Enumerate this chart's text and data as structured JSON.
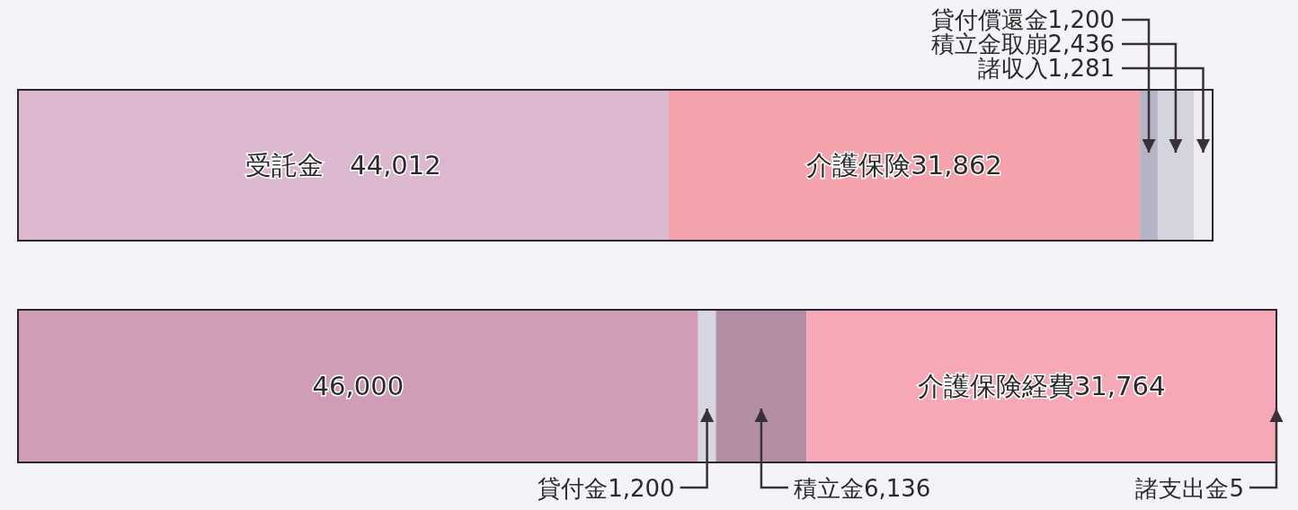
{
  "chart_data": [
    {
      "type": "bar",
      "orientation": "horizontal",
      "stacked": true,
      "categories": [
        null
      ],
      "series": [
        {
          "color": "#dcb8d0",
          "values": [
            44012
          ],
          "value_labels": [
            "受託金　44,012"
          ]
        },
        {
          "color": "#f4a2ac",
          "values": [
            31862
          ],
          "value_labels": [
            "介護保険31,862"
          ]
        },
        {
          "color": "#b4b4c4",
          "values": [
            1200
          ],
          "value_labels": [
            "貸付償還金1,200"
          ]
        },
        {
          "color": "#d4d4de",
          "values": [
            2436
          ],
          "value_labels": [
            "積立金取崩2,436"
          ]
        },
        {
          "color": "#eeecf2",
          "values": [
            1281
          ],
          "value_labels": [
            "諸収入1,281"
          ]
        }
      ]
    },
    {
      "type": "bar",
      "orientation": "horizontal",
      "stacked": true,
      "categories": [
        null
      ],
      "series": [
        {
          "color": "#cf9db6",
          "values": [
            46000
          ],
          "value_labels": [
            "46,000"
          ]
        },
        {
          "color": "#d6d6e2",
          "values": [
            1200
          ],
          "value_labels": [
            "貸付金1,200"
          ]
        },
        {
          "color": "#b48ea4",
          "values": [
            6136
          ],
          "value_labels": [
            "積立金6,136"
          ]
        },
        {
          "color": "#f6a8b6",
          "values": [
            31764
          ],
          "value_labels": [
            "介護保険経費31,764"
          ]
        },
        {
          "color": "#eeeef2",
          "values": [
            5
          ],
          "value_labels": [
            "諸支出金5"
          ]
        }
      ]
    }
  ]
}
